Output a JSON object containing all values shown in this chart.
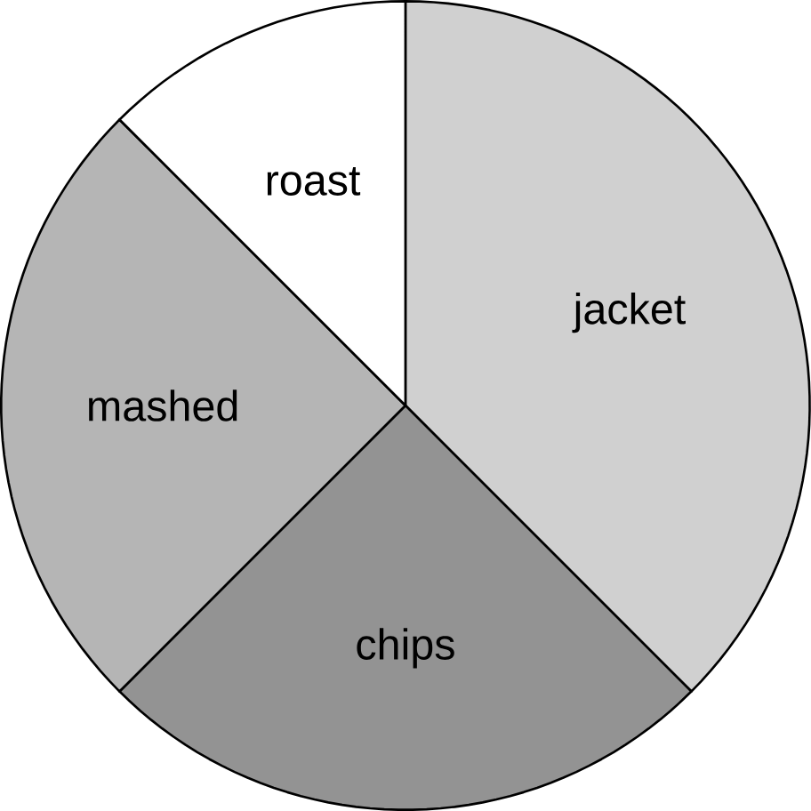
{
  "chart_data": {
    "type": "pie",
    "categories": [
      "jacket",
      "chips",
      "mashed",
      "roast"
    ],
    "values": [
      37.5,
      25,
      25,
      12.5
    ],
    "colors": [
      "#d0d0d0",
      "#939393",
      "#b5b5b5",
      "#ffffff"
    ]
  }
}
